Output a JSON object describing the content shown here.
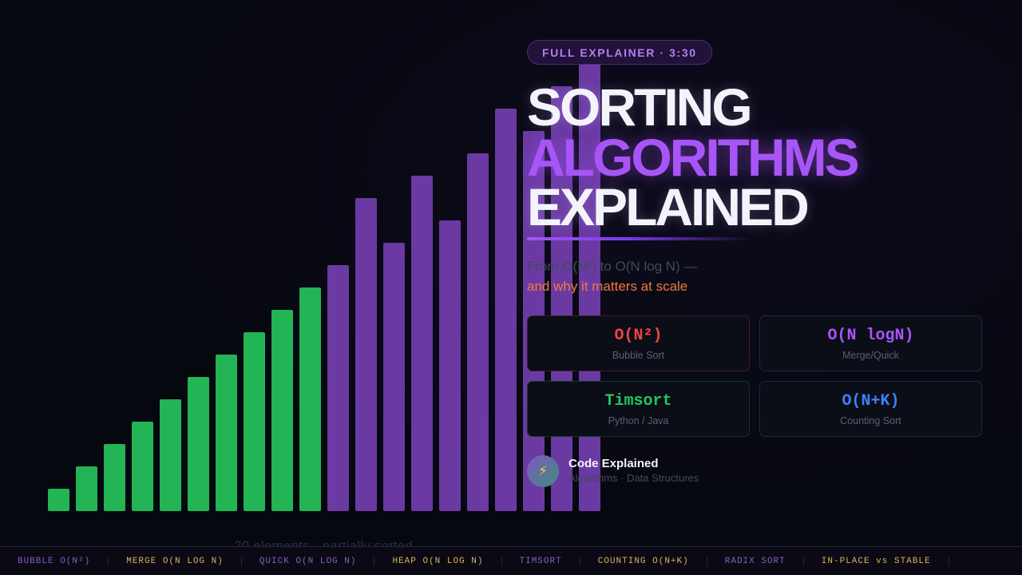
{
  "visualization": {
    "bars": [
      {
        "value": 1,
        "state": "sorted"
      },
      {
        "value": 2,
        "state": "sorted"
      },
      {
        "value": 3,
        "state": "sorted"
      },
      {
        "value": 4,
        "state": "sorted"
      },
      {
        "value": 5,
        "state": "sorted"
      },
      {
        "value": 6,
        "state": "sorted"
      },
      {
        "value": 7,
        "state": "sorted"
      },
      {
        "value": 8,
        "state": "sorted"
      },
      {
        "value": 9,
        "state": "sorted"
      },
      {
        "value": 10,
        "state": "sorted"
      },
      {
        "value": 11,
        "state": "unsorted"
      },
      {
        "value": 14,
        "state": "unsorted"
      },
      {
        "value": 12,
        "state": "unsorted"
      },
      {
        "value": 15,
        "state": "unsorted"
      },
      {
        "value": 13,
        "state": "unsorted"
      },
      {
        "value": 16,
        "state": "unsorted"
      },
      {
        "value": 18,
        "state": "unsorted"
      },
      {
        "value": 17,
        "state": "unsorted"
      },
      {
        "value": 19,
        "state": "unsorted"
      },
      {
        "value": 20,
        "state": "unsorted"
      }
    ],
    "caption": "20 elements · partially sorted",
    "colors": {
      "sorted": "#22b455",
      "unsorted": "#6a3aa2"
    }
  },
  "header": {
    "badge": "FULL EXPLAINER · 3:30",
    "title_line1": "SORTING",
    "title_line2": "ALGORITHMS",
    "title_line3": "EXPLAINED"
  },
  "subtitle": {
    "line1": "From O(N²) to O(N log N) —",
    "line2": "and why it matters at scale"
  },
  "cards": [
    {
      "value": "O(N²)",
      "label": "Bubble Sort",
      "color": "#ef4444"
    },
    {
      "value": "O(N logN)",
      "label": "Merge/Quick",
      "color": "#a855f7"
    },
    {
      "value": "Timsort",
      "label": "Python / Java",
      "color": "#22c55e"
    },
    {
      "value": "O(N+K)",
      "label": "Counting Sort",
      "color": "#3b82f6"
    }
  ],
  "brand": {
    "icon": "lightning-icon",
    "name": "Code Explained",
    "tagline": "Algorithms · Data Structures"
  },
  "ticker": [
    "BUBBLE O(N²)",
    "MERGE O(N LOG N)",
    "QUICK O(N LOG N)",
    "HEAP O(N LOG N)",
    "TIMSORT",
    "COUNTING O(N+K)",
    "RADIX SORT",
    "IN-PLACE vs STABLE"
  ]
}
